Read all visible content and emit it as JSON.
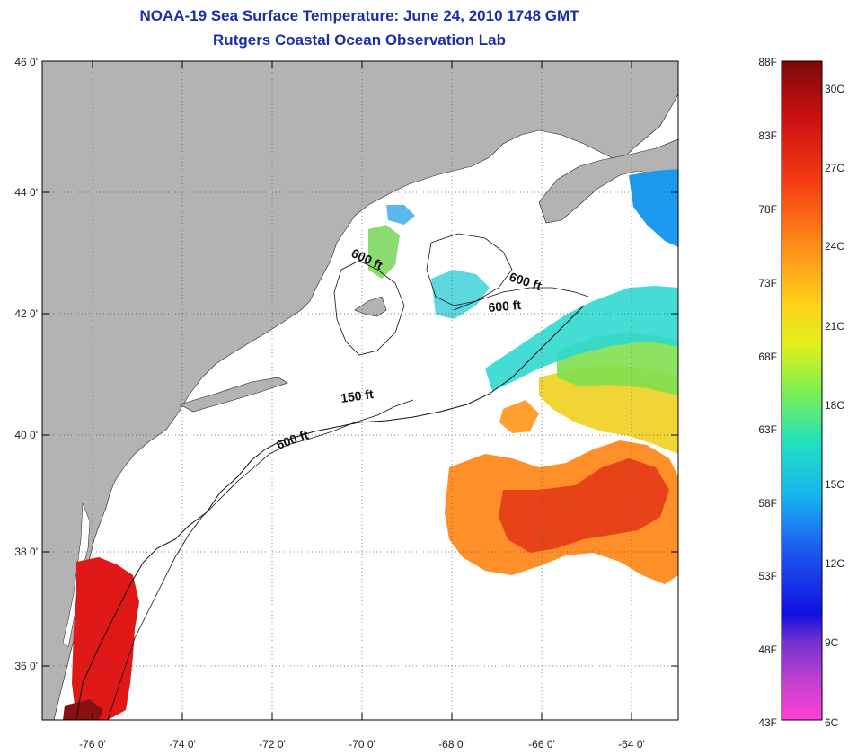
{
  "title": "NOAA-19 Sea Surface Temperature:  June 24, 2010 1748 GMT",
  "subtitle": "Rutgers Coastal Ocean Observation Lab",
  "latitude_ticks": [
    "46 0'",
    "44 0'",
    "42 0'",
    "40 0'",
    "38 0'",
    "36 0'"
  ],
  "longitude_ticks": [
    "-76 0'",
    "-74 0'",
    "-72 0'",
    "-70 0'",
    "-68 0'",
    "-66 0'",
    "-64 0'"
  ],
  "contour_labels": {
    "label_1": "600 ft",
    "label_2": "600 ft",
    "label_3": "600 ft",
    "label_4": "150 ft",
    "label_5": "600 ft"
  },
  "colorbar": {
    "fahrenheit": [
      "88F",
      "83F",
      "78F",
      "73F",
      "68F",
      "63F",
      "58F",
      "53F",
      "48F",
      "43F"
    ],
    "celsius": [
      "30C",
      "27C",
      "24C",
      "21C",
      "18C",
      "15C",
      "12C",
      "9C",
      "6C"
    ]
  },
  "colors": {
    "land": "#b3b3b3",
    "ocean": "#ffffff",
    "title": "#1a2fa8"
  }
}
